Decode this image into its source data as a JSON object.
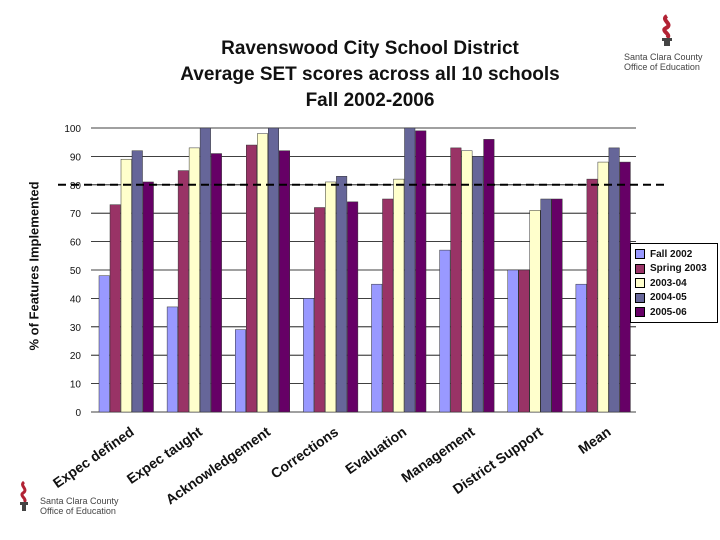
{
  "title_lines": [
    "Ravenswood City School District",
    "Average SET scores across all 10 schools",
    "Fall 2002-2006"
  ],
  "logo": {
    "line1": "Santa Clara County",
    "line2": "Office of Education",
    "accent_color": "#b22234"
  },
  "chart_data": {
    "type": "bar",
    "title": "Ravenswood City School District Average SET scores across all 10 schools Fall 2002-2006",
    "ylabel": "% of Features Implemented",
    "xlabel": "",
    "ylim": [
      0,
      100
    ],
    "yticks": [
      0,
      10,
      20,
      30,
      40,
      50,
      60,
      70,
      80,
      90,
      100
    ],
    "grid": true,
    "legend_position": "right",
    "reference_line": {
      "value": 80,
      "style": "dashed"
    },
    "categories": [
      "Expec defined",
      "Expec taught",
      "Acknowledgement",
      "Corrections",
      "Evaluation",
      "Management",
      "District Support",
      "Mean"
    ],
    "series": [
      {
        "name": "Fall 2002",
        "color": "#9999ff",
        "values": [
          48,
          37,
          29,
          40,
          45,
          57,
          50,
          45
        ]
      },
      {
        "name": "Spring 2003",
        "color": "#993366",
        "values": [
          73,
          85,
          94,
          72,
          75,
          93,
          50,
          82
        ]
      },
      {
        "name": "2003-04",
        "color": "#ffffcc",
        "values": [
          89,
          93,
          98,
          81,
          82,
          92,
          71,
          88
        ]
      },
      {
        "name": "2004-05",
        "color": "#666699",
        "values": [
          92,
          100,
          100,
          83,
          100,
          90,
          75,
          93
        ]
      },
      {
        "name": "2005-06",
        "color": "#660066",
        "values": [
          81,
          91,
          92,
          74,
          99,
          96,
          75,
          88
        ]
      }
    ]
  }
}
